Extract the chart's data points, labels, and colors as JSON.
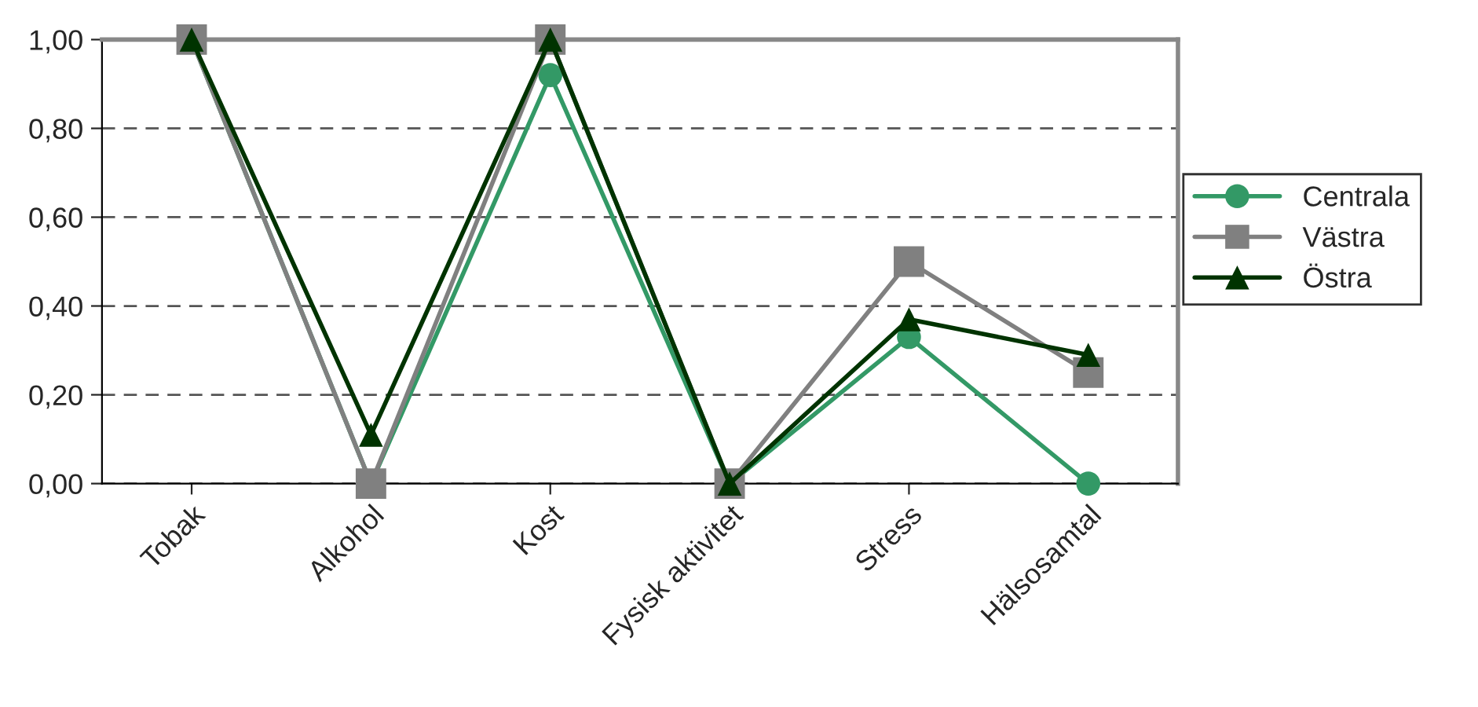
{
  "chart_data": {
    "type": "line",
    "categories": [
      "Tobak",
      "Alkohol",
      "Kost",
      "Fysisk aktivitet",
      "Stress",
      "Hälsosamtal"
    ],
    "series": [
      {
        "name": "Centrala",
        "color": "#339966",
        "marker": "circle",
        "values": [
          1.0,
          0.0,
          0.92,
          0.0,
          0.33,
          0.0
        ]
      },
      {
        "name": "Västra",
        "color": "#808080",
        "marker": "square",
        "values": [
          1.0,
          0.0,
          1.0,
          0.0,
          0.5,
          0.25
        ]
      },
      {
        "name": "Östra",
        "color": "#003300",
        "marker": "triangle",
        "values": [
          1.0,
          0.11,
          1.0,
          0.0,
          0.37,
          0.29
        ]
      }
    ],
    "ylim": [
      0,
      1
    ],
    "yticks": [
      {
        "value": 0,
        "label": "0,00"
      },
      {
        "value": 0.2,
        "label": "0,20"
      },
      {
        "value": 0.4,
        "label": "0,40"
      },
      {
        "value": 0.6,
        "label": "0,60"
      },
      {
        "value": 0.8,
        "label": "0,80"
      },
      {
        "value": 1.0,
        "label": "1,00"
      }
    ],
    "grid": "y",
    "legend": "right",
    "line_style": "solid"
  }
}
